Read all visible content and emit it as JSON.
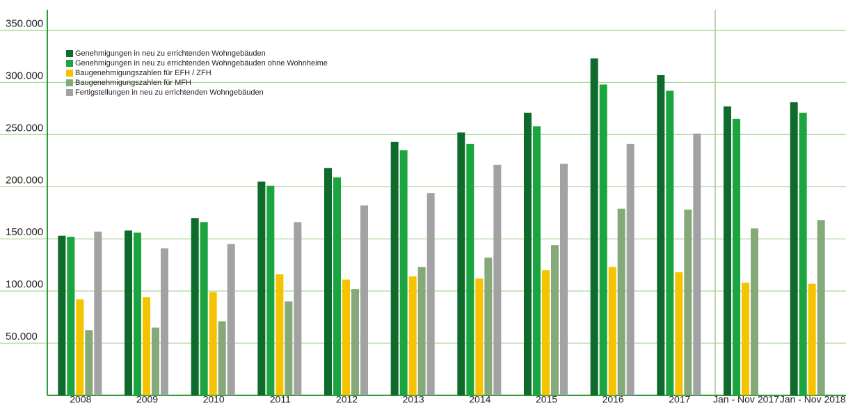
{
  "chart_data": {
    "type": "bar",
    "categories": [
      "2008",
      "2009",
      "2010",
      "2011",
      "2012",
      "2013",
      "2014",
      "2015",
      "2016",
      "2017",
      "Jan - Nov 2017",
      "Jan - Nov 2018"
    ],
    "series": [
      {
        "name": "Genehmigungen in neu zu errichtenden Wohngebäuden",
        "color": "#0e6b2b",
        "values": [
          153000,
          158000,
          170000,
          205000,
          218000,
          243000,
          252000,
          271000,
          323000,
          307000,
          277000,
          281000
        ]
      },
      {
        "name": "Genehmigungen in neu zu errichtenden Wohngebäuden ohne Wohnheime",
        "color": "#1ba540",
        "values": [
          152000,
          156000,
          166000,
          201000,
          209000,
          235000,
          241000,
          258000,
          298000,
          292000,
          265000,
          271000
        ]
      },
      {
        "name": "Baugenehmigungszahlen für EFH / ZFH",
        "color": "#f6c300",
        "values": [
          92000,
          94000,
          99000,
          116000,
          111000,
          114000,
          112000,
          120000,
          123000,
          118000,
          108000,
          107000
        ]
      },
      {
        "name": "Baugenehmigungszahlen für MFH",
        "color": "#86a97a",
        "values": [
          62500,
          65000,
          71000,
          90000,
          102000,
          123000,
          132000,
          144000,
          179000,
          178000,
          160000,
          168000
        ]
      },
      {
        "name": "Fertigstellungen in neu zu errichtenden Wohngebäuden",
        "color": "#a2a2a2",
        "values": [
          157000,
          141000,
          145000,
          166000,
          182000,
          194000,
          221000,
          222000,
          241000,
          251000,
          null,
          null
        ]
      }
    ],
    "ylim": [
      0,
      355000
    ],
    "yticks": [
      {
        "value": 50000,
        "label": "50.000"
      },
      {
        "value": 100000,
        "label": "100.000"
      },
      {
        "value": 150000,
        "label": "150.000"
      },
      {
        "value": 200000,
        "label": "200.000"
      },
      {
        "value": 250000,
        "label": "250.000"
      },
      {
        "value": 300000,
        "label": "300.000"
      },
      {
        "value": 350000,
        "label": "350.000"
      }
    ],
    "grid": true,
    "legend": "top-left"
  }
}
